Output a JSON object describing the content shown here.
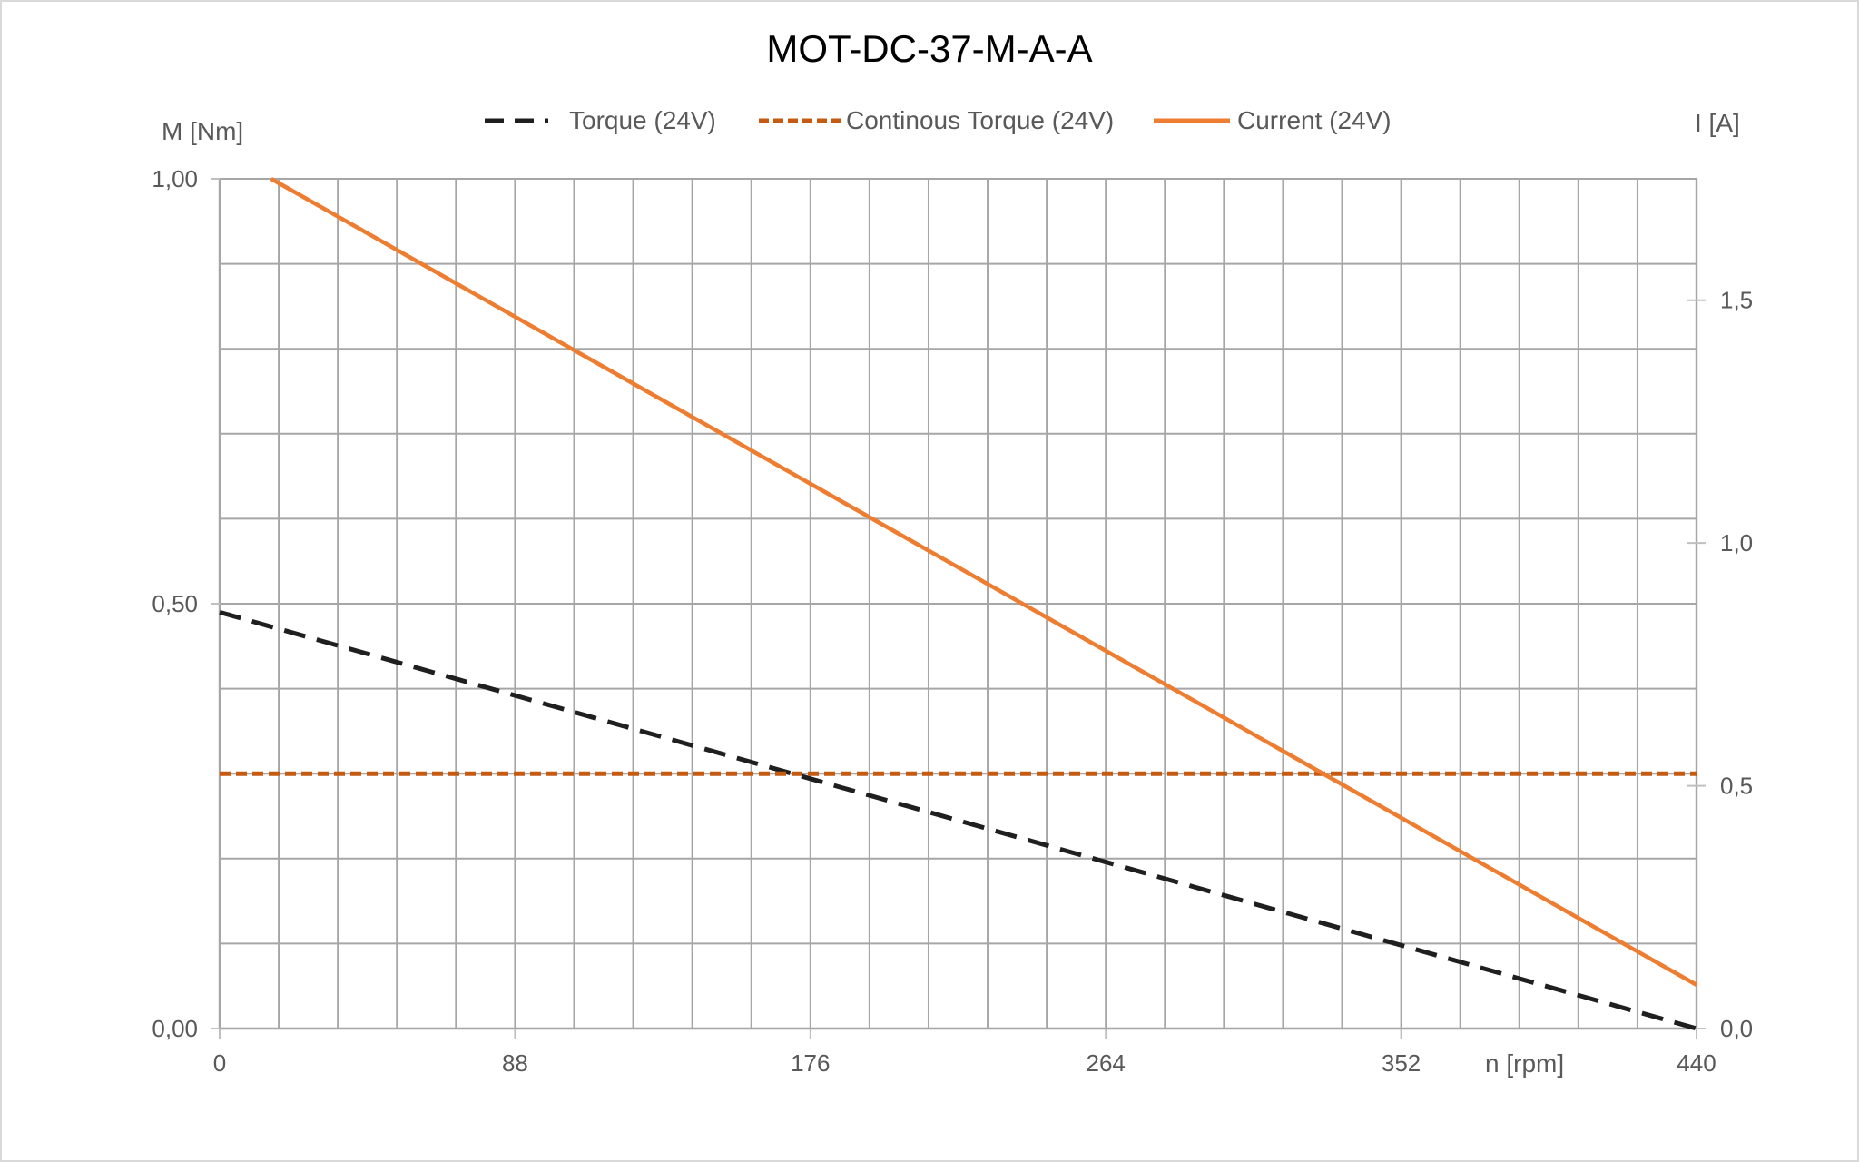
{
  "chart_data": {
    "type": "line",
    "title": "MOT-DC-37-M-A-A",
    "xlabel": "n [rpm]",
    "ylabel_left": "M [Nm]",
    "ylabel_right": "I [A]",
    "xlim": [
      0,
      440
    ],
    "ylim_left": [
      0,
      1
    ],
    "ylim_right": [
      0,
      1.75
    ],
    "x_ticks": [
      0,
      88,
      176,
      264,
      352,
      440
    ],
    "x_tick_labels": [
      "0",
      "88",
      "176",
      "264",
      "352",
      "440"
    ],
    "left_ticks": [
      0,
      0.5,
      1
    ],
    "left_tick_labels": [
      "0,00",
      "0,50",
      "1,00"
    ],
    "right_ticks": [
      0,
      0.5,
      1,
      1.5
    ],
    "right_tick_labels": [
      "0,0",
      "0,5",
      "1,0",
      "1,5"
    ],
    "minor_x_step": 17.6,
    "minor_left_step": 0.1,
    "grid": true,
    "legend_position": "top",
    "colors": {
      "torque": "#1f1f1f",
      "continuous_torque": "#c55a11",
      "current": "#ed7d31",
      "grid": "#a6a6a6",
      "text": "#595959"
    },
    "series": [
      {
        "name": "Torque (24V)",
        "axis": "left",
        "style": "dashed",
        "color": "#1f1f1f",
        "x": [
          0,
          440
        ],
        "y": [
          0.49,
          0
        ]
      },
      {
        "name": "Continous Torque (24V)",
        "axis": "left",
        "style": "dashed",
        "color": "#c55a11",
        "x": [
          0,
          440
        ],
        "y": [
          0.3,
          0.3
        ]
      },
      {
        "name": "Current (24V)",
        "axis": "right",
        "style": "solid",
        "color": "#ed7d31",
        "x": [
          0,
          440
        ],
        "y": [
          1.81,
          0.09
        ]
      }
    ]
  }
}
